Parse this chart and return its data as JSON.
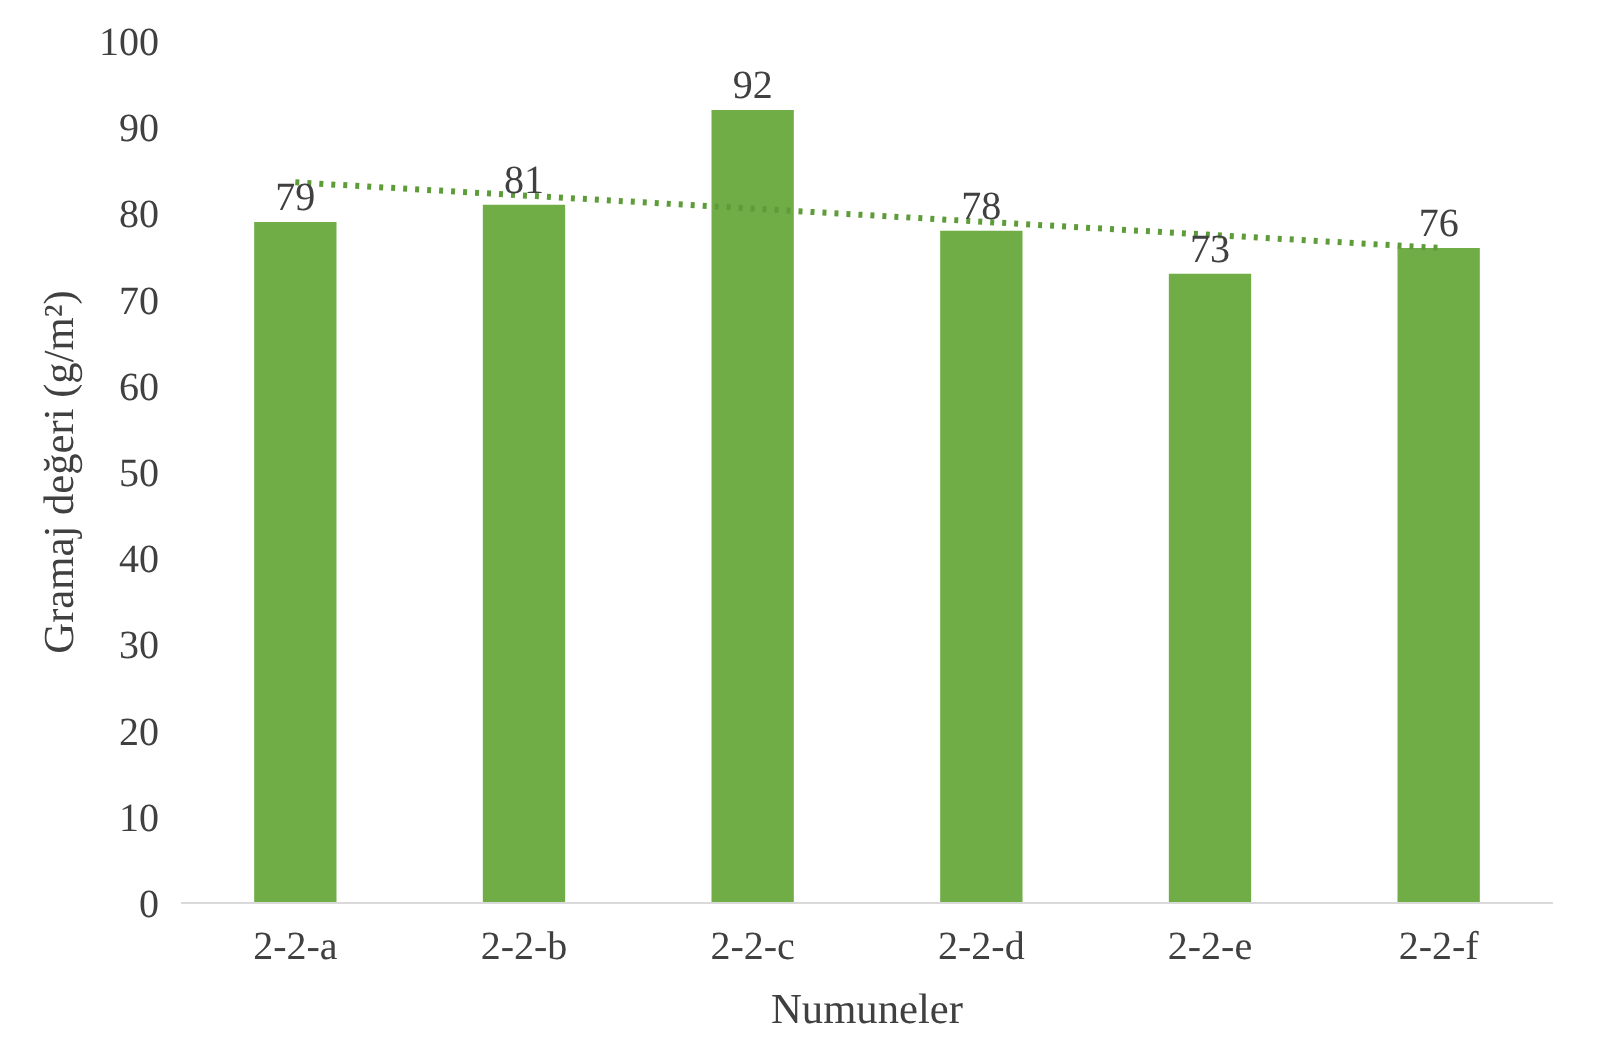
{
  "chart_data": {
    "type": "bar",
    "xlabel": "Numuneler",
    "ylabel": "Gramaj değeri (g/m²)",
    "categories": [
      "2-2-a",
      "2-2-b",
      "2-2-c",
      "2-2-d",
      "2-2-e",
      "2-2-f"
    ],
    "series": [
      {
        "color": "#70ad47",
        "values": [
          79,
          81,
          92,
          78,
          73,
          76
        ],
        "value_labels": [
          "79",
          "81",
          "92",
          "78",
          "73",
          "76"
        ]
      },
      {
        "type": "line",
        "color": "#5e9c3a",
        "line_style": "dotted",
        "x": [
          "2-2-a",
          "2-2-f"
        ],
        "values": [
          83.6,
          76.0
        ]
      }
    ],
    "ylim": [
      0,
      100
    ],
    "yticks": [
      0,
      10,
      20,
      30,
      40,
      50,
      60,
      70,
      80,
      90,
      100
    ],
    "grid": false
  }
}
